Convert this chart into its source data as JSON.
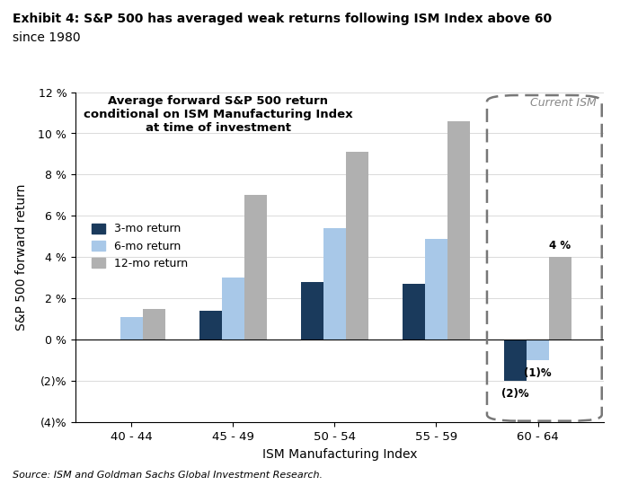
{
  "title_line1": "Exhibit 4: S&P 500 has averaged weak returns following ISM Index above 60",
  "title_line2": "since 1980",
  "inner_title": "Average forward S&P 500 return\nconditional on ISM Manufacturing Index\nat time of investment",
  "categories": [
    "40 - 44",
    "45 - 49",
    "50 - 54",
    "55 - 59",
    "60 - 64"
  ],
  "series": {
    "3-mo return": [
      0.0,
      1.4,
      2.8,
      2.7,
      -2.0
    ],
    "6-mo return": [
      1.1,
      3.0,
      5.4,
      4.9,
      -1.0
    ],
    "12-mo return": [
      1.5,
      7.0,
      9.1,
      10.6,
      4.0
    ]
  },
  "colors": {
    "3-mo return": "#1a3a5c",
    "6-mo return": "#a8c8e8",
    "12-mo return": "#b0b0b0"
  },
  "xlabel": "ISM Manufacturing Index",
  "ylabel": "S&P 500 forward return",
  "ylim": [
    -4,
    12
  ],
  "yticks": [
    -4,
    -2,
    0,
    2,
    4,
    6,
    8,
    10,
    12
  ],
  "source": "Source: ISM and Goldman Sachs Global Investment Research.",
  "current_ism_label": "Current ISM",
  "background_color": "#ffffff",
  "plot_bg_color": "#ffffff"
}
